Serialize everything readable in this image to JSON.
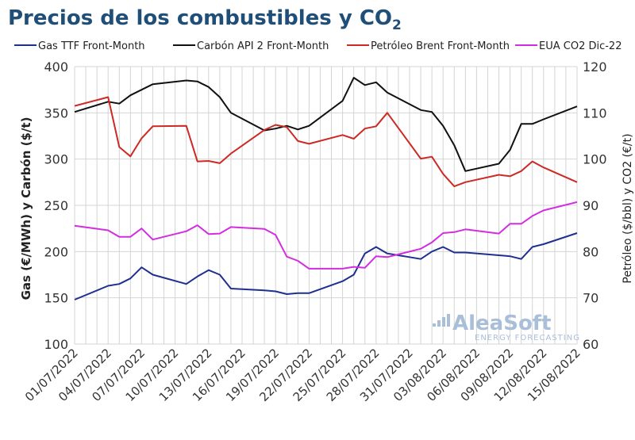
{
  "chart_data": {
    "type": "line",
    "title": "Precios de los combustibles y CO",
    "title_sub": "2",
    "ylabel_left": "Gas (€/MWh) y Carbón ($/t)",
    "ylabel_right": "Petróleo ($/bbl) y CO2 (€/t)",
    "ylim_left": [
      100,
      400
    ],
    "ylim_right": [
      60,
      120
    ],
    "yticks_left": [
      100,
      150,
      200,
      250,
      300,
      350,
      400
    ],
    "yticks_right": [
      60,
      70,
      80,
      90,
      100,
      110,
      120
    ],
    "x_range": [
      "2022-07-01",
      "2022-08-15"
    ],
    "x_tick_labels": [
      "01/07/2022",
      "04/07/2022",
      "07/07/2022",
      "10/07/2022",
      "13/07/2022",
      "16/07/2022",
      "19/07/2022",
      "22/07/2022",
      "25/07/2022",
      "28/07/2022",
      "31/07/2022",
      "03/08/2022",
      "06/08/2022",
      "09/08/2022",
      "12/08/2022",
      "15/08/2022"
    ],
    "legend_position": "top",
    "grid": true,
    "series": [
      {
        "name": "Gas TTF Front-Month",
        "axis": "left",
        "color": "#1f2f8f",
        "points": [
          [
            "2022-07-01",
            148
          ],
          [
            "2022-07-04",
            163
          ],
          [
            "2022-07-05",
            165
          ],
          [
            "2022-07-06",
            171
          ],
          [
            "2022-07-07",
            183
          ],
          [
            "2022-07-08",
            175
          ],
          [
            "2022-07-11",
            165
          ],
          [
            "2022-07-12",
            173
          ],
          [
            "2022-07-13",
            180
          ],
          [
            "2022-07-14",
            175
          ],
          [
            "2022-07-15",
            160
          ],
          [
            "2022-07-18",
            158
          ],
          [
            "2022-07-19",
            157
          ],
          [
            "2022-07-20",
            154
          ],
          [
            "2022-07-21",
            155
          ],
          [
            "2022-07-22",
            155
          ],
          [
            "2022-07-25",
            168
          ],
          [
            "2022-07-26",
            175
          ],
          [
            "2022-07-27",
            198
          ],
          [
            "2022-07-28",
            205
          ],
          [
            "2022-07-29",
            198
          ],
          [
            "2022-08-01",
            192
          ],
          [
            "2022-08-02",
            200
          ],
          [
            "2022-08-03",
            205
          ],
          [
            "2022-08-04",
            199
          ],
          [
            "2022-08-05",
            199
          ],
          [
            "2022-08-08",
            196
          ],
          [
            "2022-08-09",
            195
          ],
          [
            "2022-08-10",
            192
          ],
          [
            "2022-08-11",
            205
          ],
          [
            "2022-08-12",
            208
          ],
          [
            "2022-08-15",
            220
          ]
        ]
      },
      {
        "name": "Carbón API 2 Front-Month",
        "axis": "left",
        "color": "#111111",
        "points": [
          [
            "2022-07-01",
            351
          ],
          [
            "2022-07-04",
            362
          ],
          [
            "2022-07-05",
            360
          ],
          [
            "2022-07-06",
            369
          ],
          [
            "2022-07-07",
            375
          ],
          [
            "2022-07-08",
            381
          ],
          [
            "2022-07-11",
            385
          ],
          [
            "2022-07-12",
            384
          ],
          [
            "2022-07-13",
            378
          ],
          [
            "2022-07-14",
            367
          ],
          [
            "2022-07-15",
            350
          ],
          [
            "2022-07-18",
            331
          ],
          [
            "2022-07-19",
            333
          ],
          [
            "2022-07-20",
            336
          ],
          [
            "2022-07-21",
            332
          ],
          [
            "2022-07-22",
            336
          ],
          [
            "2022-07-25",
            363
          ],
          [
            "2022-07-26",
            388
          ],
          [
            "2022-07-27",
            380
          ],
          [
            "2022-07-28",
            383
          ],
          [
            "2022-07-29",
            372
          ],
          [
            "2022-08-01",
            353
          ],
          [
            "2022-08-02",
            351
          ],
          [
            "2022-08-03",
            336
          ],
          [
            "2022-08-04",
            315
          ],
          [
            "2022-08-05",
            287
          ],
          [
            "2022-08-08",
            295
          ],
          [
            "2022-08-09",
            310
          ],
          [
            "2022-08-10",
            338
          ],
          [
            "2022-08-11",
            338
          ],
          [
            "2022-08-12",
            343
          ],
          [
            "2022-08-15",
            357
          ]
        ]
      },
      {
        "name": "Petróleo Brent Front-Month",
        "axis": "right",
        "color": "#cc2a24",
        "points": [
          [
            "2022-07-01",
            111.5
          ],
          [
            "2022-07-04",
            113.4
          ],
          [
            "2022-07-05",
            102.6
          ],
          [
            "2022-07-06",
            100.6
          ],
          [
            "2022-07-07",
            104.5
          ],
          [
            "2022-07-08",
            107.1
          ],
          [
            "2022-07-11",
            107.2
          ],
          [
            "2022-07-12",
            99.5
          ],
          [
            "2022-07-13",
            99.6
          ],
          [
            "2022-07-14",
            99.1
          ],
          [
            "2022-07-15",
            101.2
          ],
          [
            "2022-07-18",
            106.3
          ],
          [
            "2022-07-19",
            107.4
          ],
          [
            "2022-07-20",
            106.9
          ],
          [
            "2022-07-21",
            103.9
          ],
          [
            "2022-07-22",
            103.3
          ],
          [
            "2022-07-25",
            105.2
          ],
          [
            "2022-07-26",
            104.4
          ],
          [
            "2022-07-27",
            106.6
          ],
          [
            "2022-07-28",
            107.1
          ],
          [
            "2022-07-29",
            110.0
          ],
          [
            "2022-08-01",
            100.1
          ],
          [
            "2022-08-02",
            100.5
          ],
          [
            "2022-08-03",
            96.8
          ],
          [
            "2022-08-04",
            94.1
          ],
          [
            "2022-08-05",
            95.0
          ],
          [
            "2022-08-08",
            96.6
          ],
          [
            "2022-08-09",
            96.3
          ],
          [
            "2022-08-10",
            97.4
          ],
          [
            "2022-08-11",
            99.5
          ],
          [
            "2022-08-12",
            98.2
          ],
          [
            "2022-08-15",
            95.0
          ]
        ]
      },
      {
        "name": "EUA CO2 Dic-22",
        "axis": "right",
        "color": "#d22ee0",
        "points": [
          [
            "2022-07-01",
            85.6
          ],
          [
            "2022-07-04",
            84.6
          ],
          [
            "2022-07-05",
            83.2
          ],
          [
            "2022-07-06",
            83.2
          ],
          [
            "2022-07-07",
            85.0
          ],
          [
            "2022-07-08",
            82.6
          ],
          [
            "2022-07-11",
            84.4
          ],
          [
            "2022-07-12",
            85.7
          ],
          [
            "2022-07-13",
            83.8
          ],
          [
            "2022-07-14",
            83.9
          ],
          [
            "2022-07-15",
            85.3
          ],
          [
            "2022-07-18",
            84.9
          ],
          [
            "2022-07-19",
            83.6
          ],
          [
            "2022-07-20",
            78.9
          ],
          [
            "2022-07-21",
            78.0
          ],
          [
            "2022-07-22",
            76.3
          ],
          [
            "2022-07-25",
            76.3
          ],
          [
            "2022-07-26",
            76.7
          ],
          [
            "2022-07-27",
            76.5
          ],
          [
            "2022-07-28",
            79.0
          ],
          [
            "2022-07-29",
            78.8
          ],
          [
            "2022-08-01",
            80.6
          ],
          [
            "2022-08-02",
            82.0
          ],
          [
            "2022-08-03",
            84.0
          ],
          [
            "2022-08-04",
            84.2
          ],
          [
            "2022-08-05",
            84.8
          ],
          [
            "2022-08-08",
            83.9
          ],
          [
            "2022-08-09",
            86.0
          ],
          [
            "2022-08-10",
            86.0
          ],
          [
            "2022-08-11",
            87.7
          ],
          [
            "2022-08-12",
            88.9
          ],
          [
            "2022-08-15",
            90.7
          ]
        ]
      }
    ]
  },
  "logo": {
    "name": "AleaSoft",
    "tagline": "ENERGY FORECASTING"
  }
}
